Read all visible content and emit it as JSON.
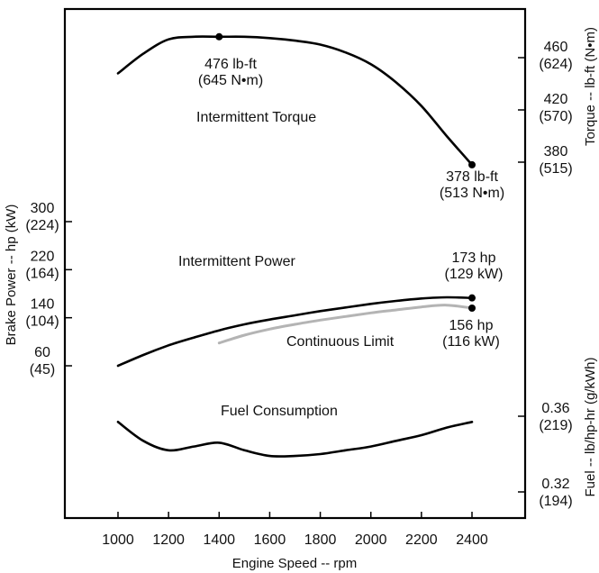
{
  "chart_data": {
    "type": "line",
    "xlabel": "Engine Speed -- rpm",
    "xlim": [
      1000,
      2400
    ],
    "x_ticks": [
      "1000",
      "1200",
      "1400",
      "1600",
      "1800",
      "2000",
      "2200",
      "2400"
    ],
    "left_axis": {
      "label": "Brake Power -- hp (kW)",
      "ticks": [
        {
          "hp": "300",
          "kw": "(224)"
        },
        {
          "hp": "220",
          "kw": "(164)"
        },
        {
          "hp": "140",
          "kw": "(104)"
        },
        {
          "hp": "60",
          "kw": "(45)"
        }
      ]
    },
    "right_top_axis": {
      "label": "Torque -- lb-ft (N•m)",
      "ticks": [
        {
          "lbft": "460",
          "nm": "(624)"
        },
        {
          "lbft": "420",
          "nm": "(570)"
        },
        {
          "lbft": "380",
          "nm": "(515)"
        }
      ]
    },
    "right_bottom_axis": {
      "label": "Fuel -- lb/hp-hr (g/kWh)",
      "ticks": [
        {
          "lbhphr": "0.36",
          "gkwh": "(219)"
        },
        {
          "lbhphr": "0.32",
          "gkwh": "(194)"
        }
      ]
    },
    "series": [
      {
        "name": "Intermittent Torque",
        "unit": "lb-ft",
        "color": "#000000",
        "points": [
          [
            1000,
            448
          ],
          [
            1100,
            463
          ],
          [
            1200,
            474
          ],
          [
            1300,
            476
          ],
          [
            1400,
            476
          ],
          [
            1500,
            476
          ],
          [
            1600,
            475
          ],
          [
            1700,
            473
          ],
          [
            1800,
            470
          ],
          [
            1900,
            464
          ],
          [
            2000,
            455
          ],
          [
            2100,
            441
          ],
          [
            2200,
            423
          ],
          [
            2300,
            400
          ],
          [
            2400,
            378
          ]
        ]
      },
      {
        "name": "Intermittent Power",
        "unit": "hp",
        "color": "#000000",
        "points": [
          [
            1000,
            60
          ],
          [
            1100,
            78
          ],
          [
            1200,
            94
          ],
          [
            1300,
            107
          ],
          [
            1400,
            119
          ],
          [
            1500,
            129
          ],
          [
            1600,
            137
          ],
          [
            1700,
            144
          ],
          [
            1800,
            151
          ],
          [
            1900,
            157
          ],
          [
            2000,
            163
          ],
          [
            2100,
            168
          ],
          [
            2200,
            172
          ],
          [
            2300,
            174
          ],
          [
            2400,
            173
          ]
        ]
      },
      {
        "name": "Continuous Limit",
        "unit": "hp",
        "color": "#b4b4b4",
        "points": [
          [
            1400,
            98
          ],
          [
            1500,
            111
          ],
          [
            1600,
            121
          ],
          [
            1700,
            129
          ],
          [
            1800,
            136
          ],
          [
            1900,
            142
          ],
          [
            2000,
            148
          ],
          [
            2100,
            153
          ],
          [
            2200,
            158
          ],
          [
            2300,
            161
          ],
          [
            2400,
            156
          ]
        ]
      },
      {
        "name": "Fuel Consumption",
        "unit": "lb/hp-hr",
        "color": "#000000",
        "points": [
          [
            1000,
            0.357
          ],
          [
            1100,
            0.347
          ],
          [
            1200,
            0.342
          ],
          [
            1300,
            0.344
          ],
          [
            1400,
            0.346
          ],
          [
            1500,
            0.342
          ],
          [
            1600,
            0.339
          ],
          [
            1700,
            0.339
          ],
          [
            1800,
            0.34
          ],
          [
            1900,
            0.342
          ],
          [
            2000,
            0.344
          ],
          [
            2100,
            0.347
          ],
          [
            2200,
            0.35
          ],
          [
            2300,
            0.354
          ],
          [
            2400,
            0.357
          ]
        ]
      }
    ],
    "annotations": {
      "peak_torque": {
        "line1": "476 lb-ft",
        "line2": "(645 N•m)",
        "x": 1400,
        "y": 476
      },
      "rated_torque": {
        "line1": "378 lb-ft",
        "line2": "(513 N•m)",
        "x": 2400,
        "y": 378
      },
      "rated_power": {
        "line1": "173 hp",
        "line2": "(129 kW)",
        "x": 2400,
        "y": 173
      },
      "continuous_power": {
        "line1": "156 hp",
        "line2": "(116 kW)",
        "x": 2400,
        "y": 156
      }
    },
    "series_labels": {
      "torque": "Intermittent Torque",
      "power": "Intermittent Power",
      "continuous": "Continuous Limit",
      "fuel": "Fuel Consumption"
    },
    "grid": false
  }
}
